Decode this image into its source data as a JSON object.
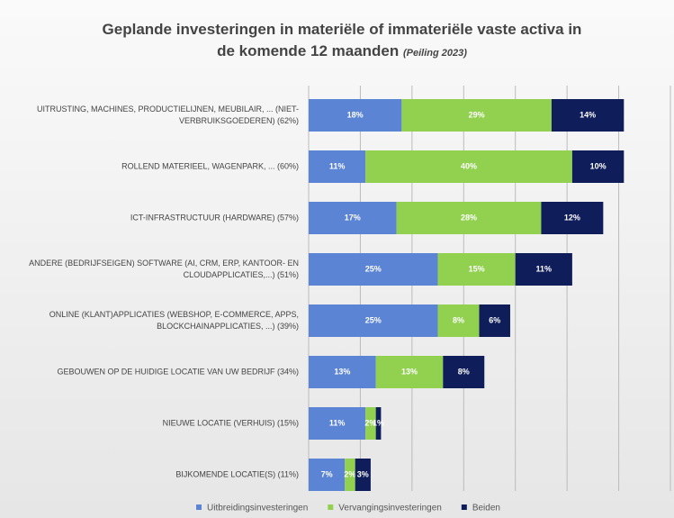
{
  "chart_data": {
    "type": "bar",
    "orientation": "horizontal",
    "stacked": true,
    "title": "Geplande investeringen in materiële of immateriële vaste activa in de komende 12 maanden",
    "subtitle": "(Peiling 2023)",
    "categories": [
      "UITRUSTING, MACHINES, PRODUCTIELIJNEN, MEUBILAIR, ... (NIET-VERBRUIKSGOEDEREN) (62%)",
      "ROLLEND MATERIEEL, WAGENPARK, ... (60%)",
      "ICT-INFRASTRUCTUUR (HARDWARE) (57%)",
      "ANDERE (BEDRIJFSEIGEN) SOFTWARE (AI, CRM, ERP, KANTOOR- EN CLOUDAPPLICATIES,...) (51%)",
      "ONLINE (KLANT)APPLICATIES (WEBSHOP, E-COMMERCE, APPS, BLOCKCHAINAPPLICATIES, ...) (39%)",
      "GEBOUWEN OP DE HUIDIGE LOCATIE VAN UW BEDRIJF (34%)",
      "NIEUWE LOCATIE (VERHUIS) (15%)",
      "BIJKOMENDE LOCATIE(S) (11%)"
    ],
    "series": [
      {
        "name": "Uitbreidingsinvesteringen",
        "color": "#5b84d4",
        "values": [
          18,
          11,
          17,
          25,
          25,
          13,
          11,
          7
        ],
        "value_labels": [
          "18%",
          "11%",
          "17%",
          "25%",
          "25%",
          "13%",
          "11%",
          "7%"
        ]
      },
      {
        "name": "Vervangingsinvesteringen",
        "color": "#92d050",
        "values": [
          29,
          40,
          28,
          15,
          8,
          13,
          2,
          2
        ],
        "value_labels": [
          "29%",
          "40%",
          "28%",
          "15%",
          "8%",
          "13%",
          "2%",
          "2%"
        ]
      },
      {
        "name": "Beiden",
        "color": "#0f1d5a",
        "values": [
          14,
          10,
          12,
          11,
          6,
          8,
          1,
          3
        ],
        "value_labels": [
          "14%",
          "10%",
          "12%",
          "11%",
          "6%",
          "8%",
          "1%",
          "3%"
        ]
      }
    ],
    "xlim": [
      0,
      70
    ],
    "xticks": [
      0,
      10,
      20,
      30,
      40,
      50,
      60,
      70
    ],
    "grid": true,
    "legend": "bottom"
  }
}
